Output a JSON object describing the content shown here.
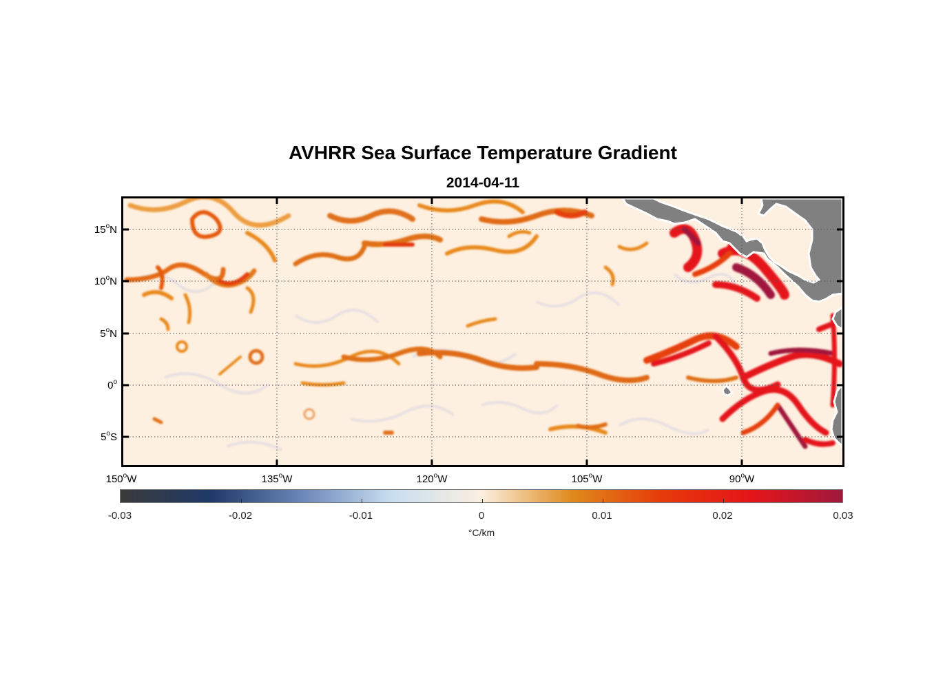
{
  "title": "AVHRR Sea Surface Temperature Gradient",
  "subtitle": "2014-04-11",
  "map": {
    "lat_labels": [
      {
        "deg": "15",
        "sup": "o",
        "hemi": "N"
      },
      {
        "deg": "10",
        "sup": "o",
        "hemi": "N"
      },
      {
        "deg": "5",
        "sup": "o",
        "hemi": "N"
      },
      {
        "deg": "0",
        "sup": "o",
        "hemi": ""
      },
      {
        "deg": "5",
        "sup": "o",
        "hemi": "S"
      }
    ],
    "lon_labels": [
      {
        "deg": "150",
        "sup": "o",
        "hemi": "W"
      },
      {
        "deg": "135",
        "sup": "o",
        "hemi": "W"
      },
      {
        "deg": "120",
        "sup": "o",
        "hemi": "W"
      },
      {
        "deg": "105",
        "sup": "o",
        "hemi": "W"
      },
      {
        "deg": "90",
        "sup": "o",
        "hemi": "W"
      }
    ],
    "land_color": "#808080",
    "ocean_base_color": "#fdf0e0"
  },
  "colorbar": {
    "ticks": [
      "-0.03",
      "-0.02",
      "-0.01",
      "0",
      "0.01",
      "0.02",
      "0.03"
    ],
    "unit_label": "°C/km",
    "colors": [
      "#3a3a3a",
      "#1f3a68",
      "#6a86b8",
      "#c8def0",
      "#fbefe0",
      "#e08a1c",
      "#e63a0a",
      "#e4141a",
      "#a0183c"
    ]
  }
}
